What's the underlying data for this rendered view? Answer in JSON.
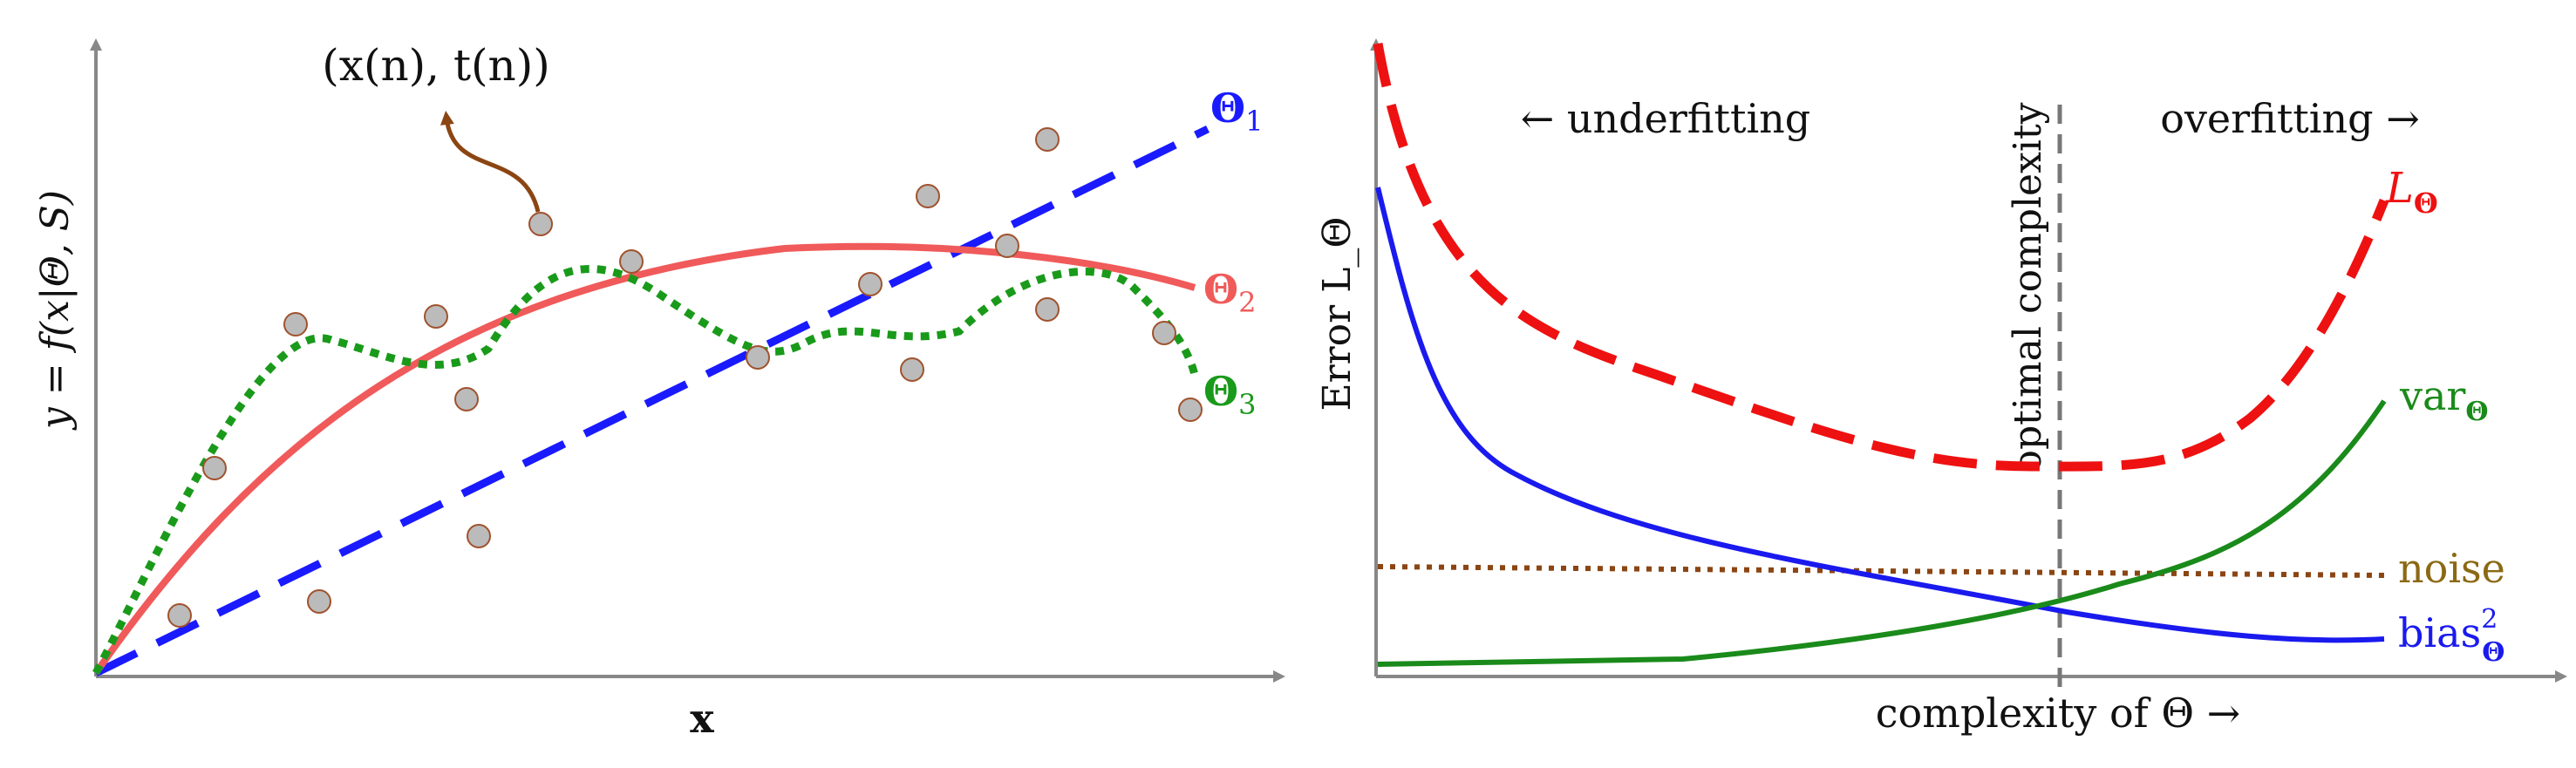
{
  "left": {
    "y_axis_label": "y = f(x|Θ, S)",
    "x_axis_label": "x",
    "datapoint_label": "(x(n), t(n))",
    "models": [
      {
        "name": "Θ",
        "sub": "1",
        "color": "#1a1aff",
        "style": "dashed"
      },
      {
        "name": "Θ",
        "sub": "2",
        "color": "#f05a5a",
        "style": "solid"
      },
      {
        "name": "Θ",
        "sub": "3",
        "color": "#1a9a1a",
        "style": "dotted"
      }
    ],
    "points": [
      [
        0.08,
        0.1
      ],
      [
        0.13,
        0.36
      ],
      [
        0.22,
        0.63
      ],
      [
        0.24,
        0.15
      ],
      [
        0.34,
        0.64
      ],
      [
        0.35,
        0.5
      ],
      [
        0.36,
        0.25
      ],
      [
        0.4,
        0.79
      ],
      [
        0.48,
        0.74
      ],
      [
        0.6,
        0.58
      ],
      [
        0.68,
        0.7
      ],
      [
        0.74,
        0.56
      ],
      [
        0.76,
        0.9
      ],
      [
        0.82,
        0.73
      ],
      [
        0.85,
        0.65
      ],
      [
        0.9,
        0.95
      ],
      [
        0.96,
        0.61
      ],
      [
        1.0,
        0.48
      ]
    ]
  },
  "right": {
    "y_axis_label": "Error L_Θ",
    "x_axis_label": "complexity of Θ →",
    "underfitting_label": "← underfitting",
    "overfitting_label": "overfitting →",
    "optimal_label": "optimal complexity",
    "loss_label": "L",
    "loss_sub": "Θ",
    "variance_label": "var",
    "variance_sub": "Θ",
    "noise_label": "noise",
    "bias_label": "bias",
    "bias_sub": "Θ",
    "bias_sup": "2",
    "colors": {
      "loss": "#ee1111",
      "variance": "#1a8a1a",
      "noise": "#8b5a1a",
      "bias": "#1a1aee",
      "axis": "#888888",
      "optimal_line": "#777777"
    }
  }
}
